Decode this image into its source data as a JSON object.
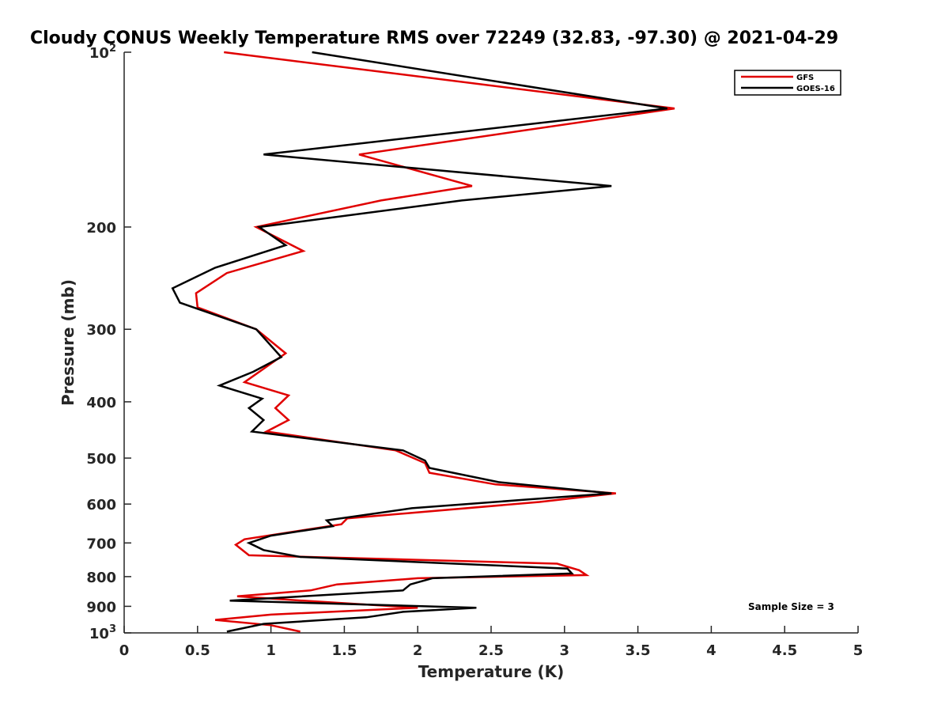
{
  "chart_data": {
    "type": "line",
    "title": "Cloudy CONUS Weekly Temperature RMS over 72249 (32.83, -97.30) @ 2021-04-29",
    "xlabel": "Temperature (K)",
    "ylabel": "Pressure (mb)",
    "xlim": [
      0,
      5
    ],
    "ylim": [
      100,
      1000
    ],
    "y_scale": "log",
    "y_reversed": true,
    "x_ticks": [
      "0",
      "0.5",
      "1",
      "1.5",
      "2",
      "2.5",
      "3",
      "3.5",
      "4",
      "4.5",
      "5"
    ],
    "y_ticks": [
      {
        "value": 100,
        "base": "10",
        "exp": "2"
      },
      {
        "value": 200,
        "label": "200"
      },
      {
        "value": 300,
        "label": "300"
      },
      {
        "value": 400,
        "label": "400"
      },
      {
        "value": 500,
        "label": "500"
      },
      {
        "value": 600,
        "label": "600"
      },
      {
        "value": 700,
        "label": "700"
      },
      {
        "value": 800,
        "label": "800"
      },
      {
        "value": 900,
        "label": "900"
      },
      {
        "value": 1000,
        "base": "10",
        "exp": "3"
      }
    ],
    "grid": false,
    "legend_position": "top-right",
    "annotation": "Sample Size = 3",
    "series": [
      {
        "name": "GFS",
        "color": "#e00000",
        "points": [
          [
            0.68,
            100
          ],
          [
            3.75,
            125
          ],
          [
            1.6,
            150
          ],
          [
            2.37,
            170
          ],
          [
            1.75,
            180
          ],
          [
            0.9,
            200
          ],
          [
            1.22,
            220
          ],
          [
            0.7,
            240
          ],
          [
            0.49,
            260
          ],
          [
            0.5,
            275
          ],
          [
            0.9,
            300
          ],
          [
            1.1,
            330
          ],
          [
            0.82,
            370
          ],
          [
            1.12,
            390
          ],
          [
            1.03,
            410
          ],
          [
            1.12,
            430
          ],
          [
            0.97,
            450
          ],
          [
            1.85,
            485
          ],
          [
            2.05,
            510
          ],
          [
            2.08,
            530
          ],
          [
            2.53,
            555
          ],
          [
            3.35,
            575
          ],
          [
            2.83,
            595
          ],
          [
            1.52,
            635
          ],
          [
            1.48,
            650
          ],
          [
            0.82,
            690
          ],
          [
            0.76,
            705
          ],
          [
            0.85,
            735
          ],
          [
            2.95,
            760
          ],
          [
            3.1,
            780
          ],
          [
            3.15,
            795
          ],
          [
            2.0,
            805
          ],
          [
            1.45,
            825
          ],
          [
            1.27,
            845
          ],
          [
            0.77,
            865
          ],
          [
            1.22,
            880
          ],
          [
            2.0,
            905
          ],
          [
            1.0,
            930
          ],
          [
            0.62,
            950
          ],
          [
            1.0,
            970
          ],
          [
            1.2,
            995
          ]
        ]
      },
      {
        "name": "GOES-16",
        "color": "#000000",
        "points": [
          [
            1.28,
            100
          ],
          [
            3.7,
            125
          ],
          [
            0.95,
            150
          ],
          [
            3.32,
            170
          ],
          [
            2.3,
            180
          ],
          [
            0.92,
            200
          ],
          [
            1.1,
            215
          ],
          [
            0.62,
            235
          ],
          [
            0.33,
            255
          ],
          [
            0.38,
            270
          ],
          [
            0.9,
            300
          ],
          [
            1.07,
            335
          ],
          [
            0.88,
            355
          ],
          [
            0.65,
            375
          ],
          [
            0.94,
            395
          ],
          [
            0.85,
            410
          ],
          [
            0.95,
            430
          ],
          [
            0.87,
            450
          ],
          [
            1.9,
            485
          ],
          [
            2.05,
            505
          ],
          [
            2.08,
            520
          ],
          [
            2.55,
            550
          ],
          [
            3.32,
            575
          ],
          [
            2.72,
            590
          ],
          [
            1.96,
            610
          ],
          [
            1.38,
            640
          ],
          [
            1.42,
            655
          ],
          [
            1.0,
            680
          ],
          [
            0.85,
            700
          ],
          [
            0.95,
            720
          ],
          [
            1.2,
            740
          ],
          [
            3.02,
            775
          ],
          [
            3.05,
            790
          ],
          [
            2.1,
            805
          ],
          [
            1.95,
            825
          ],
          [
            1.9,
            845
          ],
          [
            0.72,
            880
          ],
          [
            2.4,
            905
          ],
          [
            1.9,
            920
          ],
          [
            1.65,
            940
          ],
          [
            0.95,
            965
          ],
          [
            0.7,
            995
          ]
        ]
      }
    ]
  }
}
